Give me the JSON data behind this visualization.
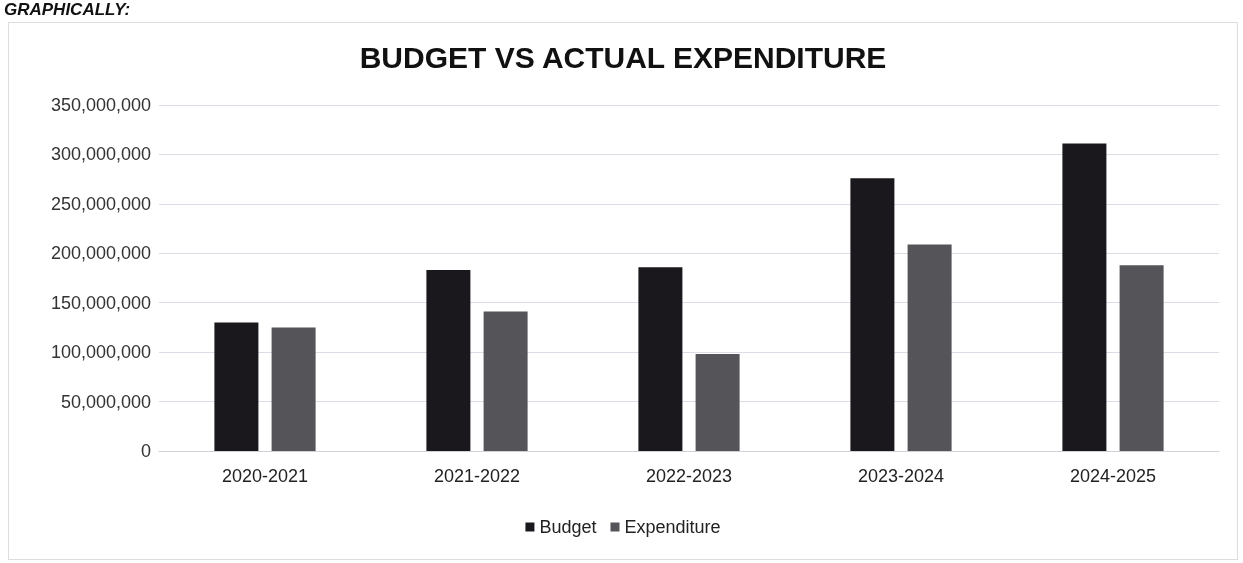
{
  "chart_data": {
    "type": "bar",
    "title": "BUDGET VS ACTUAL EXPENDITURE",
    "annotations": [
      "GRAPHICALLY:"
    ],
    "categories": [
      "2020-2021",
      "2021-2022",
      "2022-2023",
      "2023-2024",
      "2024-2025"
    ],
    "series": [
      {
        "name": "Budget",
        "color": "#1a181c",
        "values": [
          130000000,
          183000000,
          186000000,
          276000000,
          311000000
        ]
      },
      {
        "name": "Expenditure",
        "color": "#555458",
        "values": [
          125000000,
          141000000,
          98000000,
          209000000,
          188000000
        ]
      }
    ],
    "ylim": [
      0,
      350000000
    ],
    "yticks": [
      0,
      {
        "value": 50000000,
        "label": "50,000,000"
      },
      {
        "value": 100000000,
        "label": "100,000,000"
      },
      {
        "value": 150000000,
        "label": "150,000,000"
      },
      {
        "value": 200000000,
        "label": "200,000,000"
      },
      {
        "value": 250000000,
        "label": "250,000,000"
      },
      {
        "value": 300000000,
        "label": "300,000,000"
      },
      {
        "value": 350000000,
        "label": "350,000,000"
      }
    ],
    "grid": "y",
    "legend": "bottom"
  }
}
